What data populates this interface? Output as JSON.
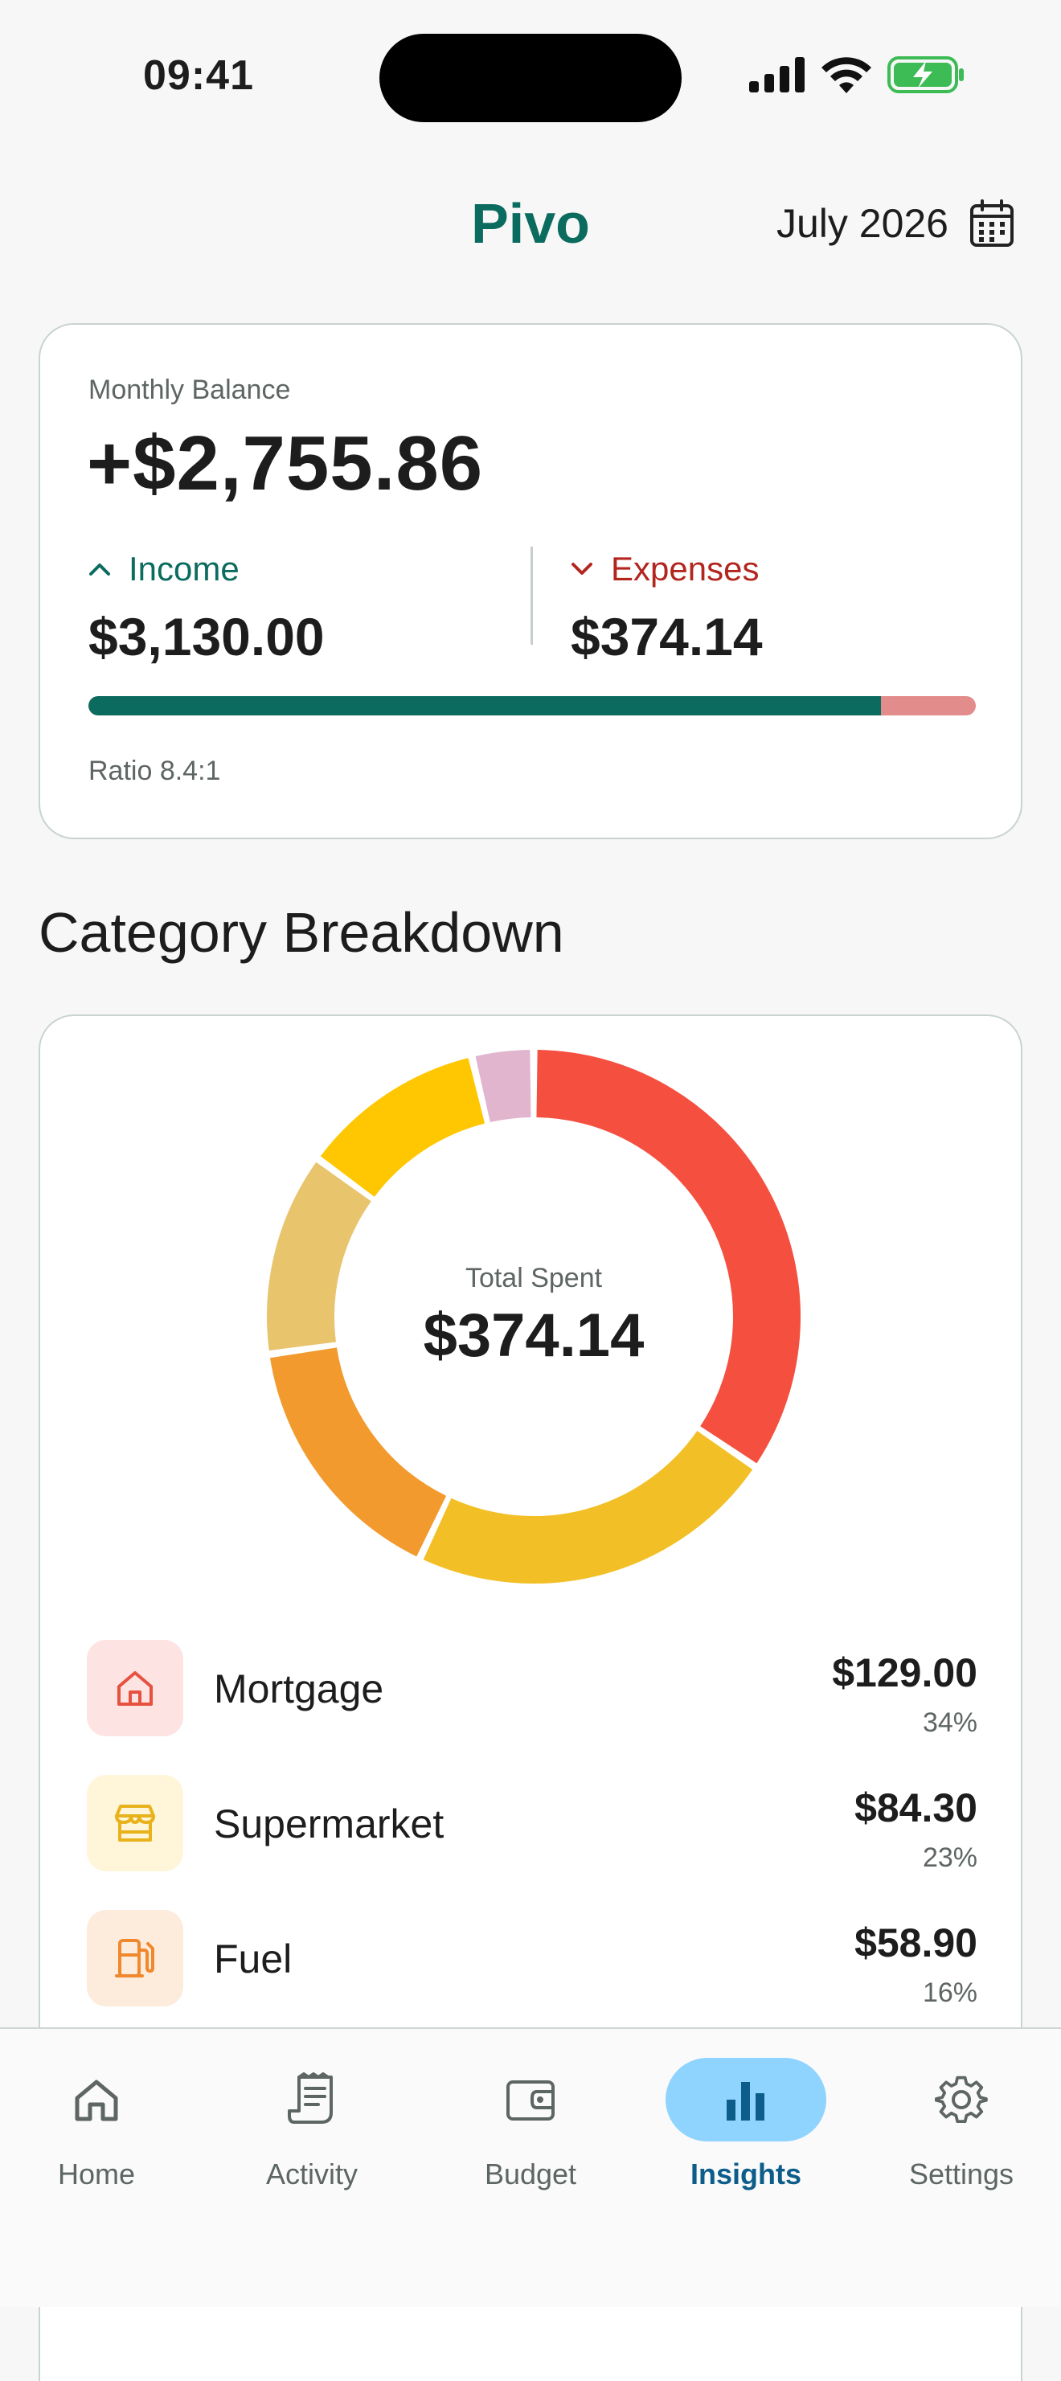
{
  "status_bar": {
    "time": "09:41"
  },
  "header": {
    "title": "Pivo",
    "month": "July 2026"
  },
  "balance": {
    "label": "Monthly Balance",
    "amount": "+$2,755.86",
    "income_label": "Income",
    "income_value": "$3,130.00",
    "expenses_label": "Expenses",
    "expenses_value": "$374.14",
    "income_share": 0.893,
    "ratio_text": "Ratio 8.4:1"
  },
  "breakdown": {
    "title": "Category Breakdown",
    "total_label": "Total Spent",
    "total_value": "$374.14"
  },
  "chart_data": {
    "type": "pie",
    "variant": "donut",
    "categories": [
      "Mortgage",
      "Supermarket",
      "Fuel",
      "Other (tan)",
      "Other (yellow)",
      "Other (pink)"
    ],
    "values": [
      129.0,
      84.3,
      58.9,
      46.0,
      42.0,
      13.94
    ],
    "colors": [
      "#f44f3f",
      "#f2c026",
      "#f39a2e",
      "#e8c46d",
      "#ffc701",
      "#e2b5cf"
    ]
  },
  "categories": [
    {
      "name": "Mortgage",
      "amount": "$129.00",
      "percent": "34%",
      "icon": "house-icon",
      "bg": "#fde3e1",
      "color": "#e65140"
    },
    {
      "name": "Supermarket",
      "amount": "$84.30",
      "percent": "23%",
      "icon": "store-icon",
      "bg": "#fff5d9",
      "color": "#e8b21b"
    },
    {
      "name": "Fuel",
      "amount": "$58.90",
      "percent": "16%",
      "icon": "fuel-pump-icon",
      "bg": "#fdecdc",
      "color": "#f0882e"
    }
  ],
  "nav": {
    "items": [
      {
        "label": "Home",
        "icon": "home-icon"
      },
      {
        "label": "Activity",
        "icon": "receipt-icon"
      },
      {
        "label": "Budget",
        "icon": "wallet-icon"
      },
      {
        "label": "Insights",
        "icon": "bar-chart-icon",
        "active": true
      },
      {
        "label": "Settings",
        "icon": "gear-icon"
      }
    ]
  }
}
